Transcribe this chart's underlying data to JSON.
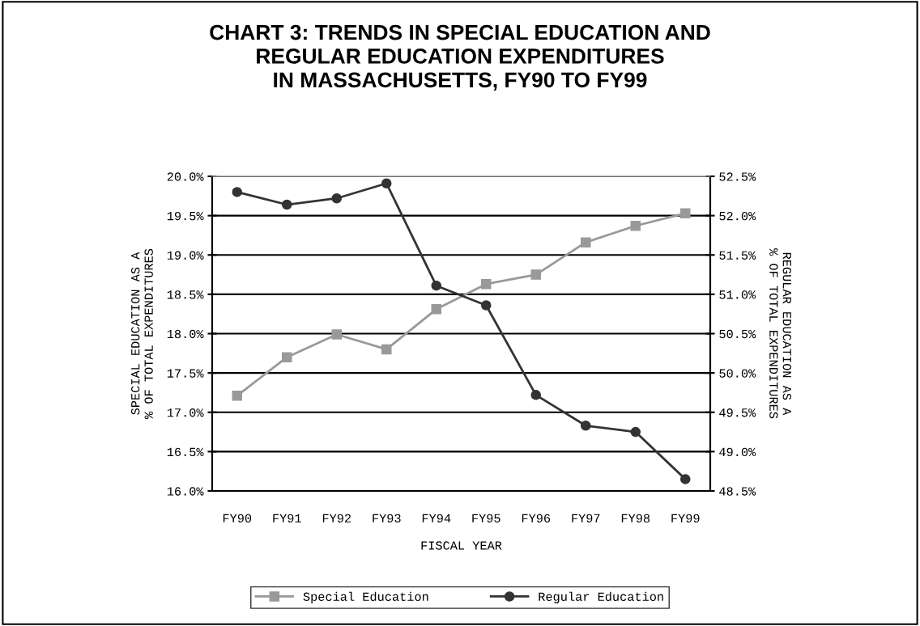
{
  "chart_data": {
    "type": "line",
    "title": "CHART 3: TRENDS IN SPECIAL EDUCATION AND\nREGULAR EDUCATION EXPENDITURES\nIN MASSACHUSETTS, FY90 TO FY99",
    "xlabel": "FISCAL YEAR",
    "ylabel": "SPECIAL EDUCATION AS A\n% OF TOTAL EXPENDITURES",
    "y2label": "REGULAR EDUCATION AS A\n% OF TOTAL EXPENDITURES",
    "categories": [
      "FY90",
      "FY91",
      "FY92",
      "FY93",
      "FY94",
      "FY95",
      "FY96",
      "FY97",
      "FY98",
      "FY99"
    ],
    "series": [
      {
        "name": "Special Education",
        "color": "#999999",
        "marker": "square",
        "values": [
          17.21,
          17.7,
          17.99,
          17.8,
          18.31,
          18.63,
          18.75,
          19.16,
          19.37,
          19.53
        ]
      },
      {
        "name": "Regular Education",
        "color": "#333333",
        "marker": "circle",
        "axis": "y2",
        "values": [
          52.3,
          52.14,
          52.22,
          52.41,
          51.11,
          50.86,
          49.72,
          49.33,
          49.25,
          48.65
        ]
      }
    ],
    "ylim": [
      16.0,
      20.0
    ],
    "yticks": [
      {
        "value": 16.0,
        "label": "16.0%"
      },
      {
        "value": 16.5,
        "label": "16.5%"
      },
      {
        "value": 17.0,
        "label": "17.0%"
      },
      {
        "value": 17.5,
        "label": "17.5%"
      },
      {
        "value": 18.0,
        "label": "18.0%"
      },
      {
        "value": 18.5,
        "label": "18.5%"
      },
      {
        "value": 19.0,
        "label": "19.0%"
      },
      {
        "value": 19.5,
        "label": "19.5%"
      },
      {
        "value": 20.0,
        "label": "20.0%"
      }
    ],
    "y2lim": [
      48.5,
      52.5
    ],
    "y2ticks": [
      {
        "value": 48.5,
        "label": "48.5%"
      },
      {
        "value": 49.0,
        "label": "49.0%"
      },
      {
        "value": 49.5,
        "label": "49.5%"
      },
      {
        "value": 50.0,
        "label": "50.0%"
      },
      {
        "value": 50.5,
        "label": "50.5%"
      },
      {
        "value": 51.0,
        "label": "51.0%"
      },
      {
        "value": 51.5,
        "label": "51.5%"
      },
      {
        "value": 52.0,
        "label": "52.0%"
      },
      {
        "value": 52.5,
        "label": "52.5%"
      }
    ],
    "grid": "y",
    "legend": "bottom"
  }
}
